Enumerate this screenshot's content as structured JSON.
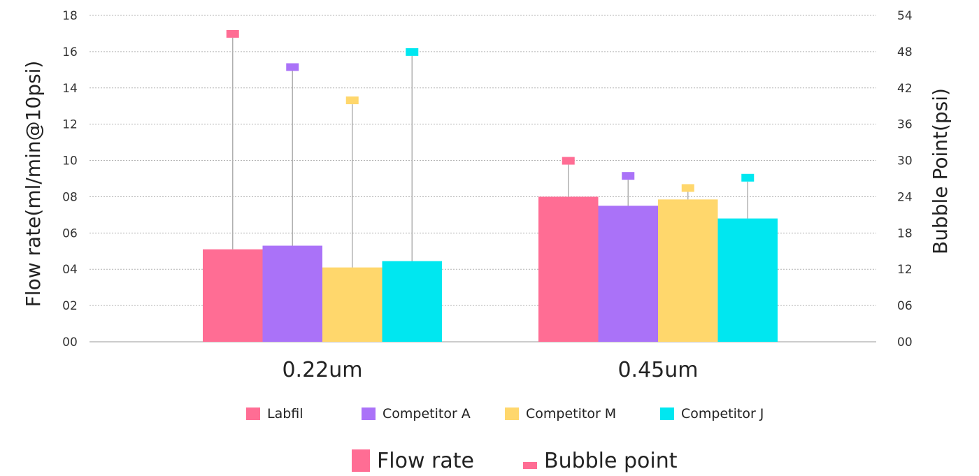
{
  "chart_data": {
    "type": "bar",
    "categories": [
      "0.22um",
      "0.45um"
    ],
    "ylabel": "Flow rate(ml/min@10psi)",
    "y2label": "Bubble Point(psi)",
    "ylim": [
      0,
      18
    ],
    "y2lim": [
      0,
      54
    ],
    "yticks": [
      "00",
      "02",
      "04",
      "06",
      "08",
      "10",
      "12",
      "14",
      "16",
      "18"
    ],
    "y2ticks": [
      "00",
      "06",
      "12",
      "18",
      "24",
      "30",
      "36",
      "42",
      "48",
      "54"
    ],
    "grid": true,
    "legend_position": "bottom",
    "series": [
      {
        "name": "Labfil",
        "color": "#ff6d94",
        "flow_rate": [
          5.1,
          8.0
        ],
        "bubble_point": [
          51,
          30
        ]
      },
      {
        "name": "Competitor A",
        "color": "#aa72f8",
        "flow_rate": [
          5.3,
          7.5
        ],
        "bubble_point": [
          45.5,
          27.5
        ]
      },
      {
        "name": "Competitor M",
        "color": "#ffd76c",
        "flow_rate": [
          4.1,
          7.85
        ],
        "bubble_point": [
          40,
          25.5
        ]
      },
      {
        "name": "Competitor J",
        "color": "#00e7f0",
        "flow_rate": [
          4.45,
          6.8
        ],
        "bubble_point": [
          48,
          27.2
        ]
      }
    ],
    "measure_legend": [
      {
        "name": "Flow rate",
        "marker": "bar"
      },
      {
        "name": "Bubble point",
        "marker": "dash"
      }
    ]
  }
}
